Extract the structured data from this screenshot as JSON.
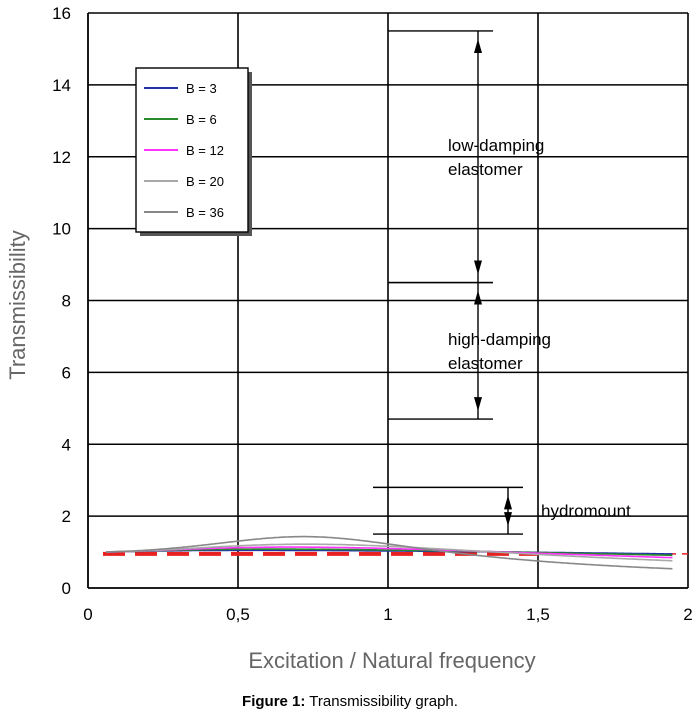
{
  "chart_data": {
    "type": "line",
    "xlabel": "Excitation / Natural frequency",
    "ylabel": "Transmissibility",
    "xlim": [
      0,
      2
    ],
    "ylim": [
      0,
      16
    ],
    "x_ticks": [
      "0",
      "0,5",
      "1",
      "1,5",
      "2"
    ],
    "x_tick_values": [
      0,
      0.5,
      1,
      1.5,
      2
    ],
    "y_ticks": [
      "0",
      "2",
      "4",
      "6",
      "8",
      "10",
      "12",
      "14",
      "16"
    ],
    "y_tick_values": [
      0,
      2,
      4,
      6,
      8,
      10,
      12,
      14,
      16
    ],
    "grid": "major",
    "legend_position": "top-left",
    "series": [
      {
        "name": "B = 3",
        "color": "#2233aa",
        "peak": 15.5,
        "peak_x": 1.0
      },
      {
        "name": "B = 6",
        "color": "#2a8a2a",
        "peak": 8.5,
        "peak_x": 1.0
      },
      {
        "name": "B = 12",
        "color": "#ff33ff",
        "peak": 4.7,
        "peak_x": 0.98
      },
      {
        "name": "B = 20",
        "color": "#a8a8a8",
        "peak": 2.8,
        "peak_x": 0.96
      },
      {
        "name": "B = 36",
        "color": "#888888",
        "peak": 1.5,
        "peak_x": 0.85
      }
    ],
    "reference_line": {
      "y": 0.95,
      "color": "#e82020"
    },
    "annotations": [
      {
        "text_lines": [
          "low-damping",
          "elastomer"
        ],
        "from": 8.5,
        "to": 15.5
      },
      {
        "text_lines": [
          "high-damping",
          "elastomer"
        ],
        "from": 4.7,
        "to": 8.5
      },
      {
        "text_lines": [
          "hydromount"
        ],
        "from": 1.5,
        "to": 2.8
      }
    ]
  },
  "caption": {
    "label": "Figure 1:",
    "text": " Transmissibility graph."
  }
}
